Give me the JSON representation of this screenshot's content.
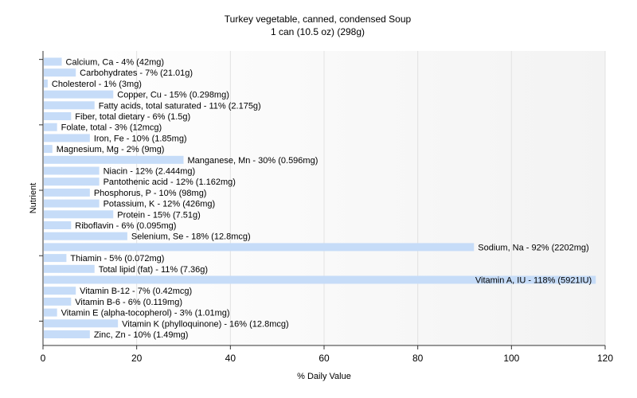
{
  "chart_data": {
    "type": "bar",
    "orientation": "horizontal",
    "title": "Turkey vegetable, canned, condensed Soup",
    "subtitle": "1 can (10.5 oz) (298g)",
    "xlabel": "% Daily Value",
    "ylabel": "Nutrient",
    "xlim": [
      0,
      120
    ],
    "xticks": [
      0,
      20,
      40,
      60,
      80,
      100,
      120
    ],
    "grid": true,
    "bar_color": "#c6dcf8",
    "categories": [
      "Calcium, Ca",
      "Carbohydrates",
      "Cholesterol",
      "Copper, Cu",
      "Fatty acids, total saturated",
      "Fiber, total dietary",
      "Folate, total",
      "Iron, Fe",
      "Magnesium, Mg",
      "Manganese, Mn",
      "Niacin",
      "Pantothenic acid",
      "Phosphorus, P",
      "Potassium, K",
      "Protein",
      "Riboflavin",
      "Selenium, Se",
      "Sodium, Na",
      "Thiamin",
      "Total lipid (fat)",
      "Vitamin A, IU",
      "Vitamin B-12",
      "Vitamin B-6",
      "Vitamin E (alpha-tocopherol)",
      "Vitamin K (phylloquinone)",
      "Zinc, Zn"
    ],
    "values": [
      4,
      7,
      1,
      15,
      11,
      6,
      3,
      10,
      2,
      30,
      12,
      12,
      10,
      12,
      15,
      6,
      18,
      92,
      5,
      11,
      118,
      7,
      6,
      3,
      16,
      10
    ],
    "labels": [
      "Calcium, Ca - 4% (42mg)",
      "Carbohydrates - 7% (21.01g)",
      "Cholesterol - 1% (3mg)",
      "Copper, Cu - 15% (0.298mg)",
      "Fatty acids, total saturated - 11% (2.175g)",
      "Fiber, total dietary - 6% (1.5g)",
      "Folate, total - 3% (12mcg)",
      "Iron, Fe - 10% (1.85mg)",
      "Magnesium, Mg - 2% (9mg)",
      "Manganese, Mn - 30% (0.596mg)",
      "Niacin - 12% (2.444mg)",
      "Pantothenic acid - 12% (1.162mg)",
      "Phosphorus, P - 10% (98mg)",
      "Potassium, K - 12% (426mg)",
      "Protein - 15% (7.51g)",
      "Riboflavin - 6% (0.095mg)",
      "Selenium, Se - 18% (12.8mcg)",
      "Sodium, Na - 92% (2202mg)",
      "Thiamin - 5% (0.072mg)",
      "Total lipid (fat) - 11% (7.36g)",
      "Vitamin A, IU - 118% (5921IU)",
      "Vitamin B-12 - 7% (0.42mcg)",
      "Vitamin B-6 - 6% (0.119mg)",
      "Vitamin E (alpha-tocopherol) - 3% (1.01mg)",
      "Vitamin K (phylloquinone) - 16% (12.8mcg)",
      "Zinc, Zn - 10% (1.49mg)"
    ]
  }
}
